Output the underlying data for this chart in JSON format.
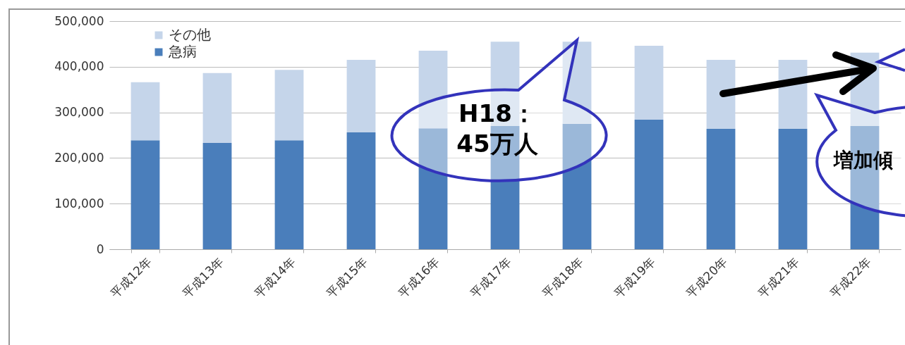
{
  "chart_data": {
    "type": "bar",
    "stacked": true,
    "categories": [
      "平成12年",
      "平成13年",
      "平成14年",
      "平成15年",
      "平成16年",
      "平成17年",
      "平成18年",
      "平成19年",
      "平成20年",
      "平成21年",
      "平成22年"
    ],
    "series": [
      {
        "name": "急病",
        "color": "#4a7ebb",
        "values": [
          239000,
          233000,
          239000,
          256000,
          265000,
          270000,
          275000,
          284000,
          264000,
          264000,
          270000
        ]
      },
      {
        "name": "その他",
        "color": "#c5d5ea",
        "values": [
          127000,
          153000,
          154000,
          159000,
          170000,
          185000,
          180000,
          162000,
          151000,
          151000,
          161000
        ]
      }
    ],
    "ylim": [
      0,
      500000
    ],
    "yticks": [
      0,
      {
        "value": 100000,
        "label": "100,000"
      },
      {
        "value": 200000,
        "label": "200,000"
      },
      {
        "value": 300000,
        "label": "300,000"
      },
      {
        "value": 400000,
        "label": "400,000"
      },
      {
        "value": 500000,
        "label": "500,000"
      }
    ],
    "grid": "y",
    "legend": "top left",
    "annotations": [
      "H18：\n45万人",
      "増加傾"
    ]
  }
}
